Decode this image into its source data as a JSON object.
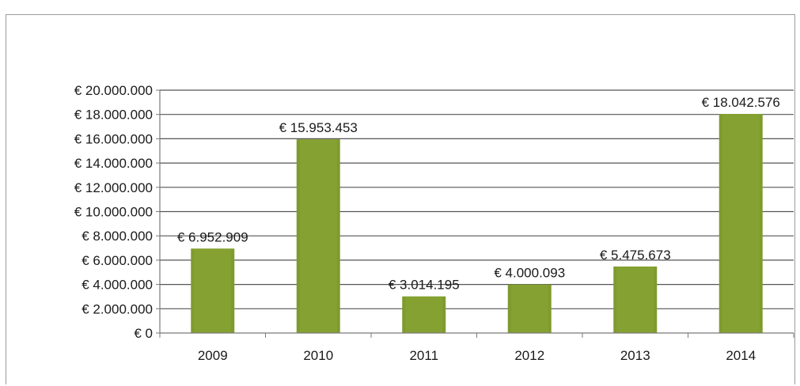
{
  "chart_data": {
    "type": "bar",
    "title": "",
    "xlabel": "",
    "ylabel": "",
    "categories": [
      "2009",
      "2010",
      "2011",
      "2012",
      "2013",
      "2014"
    ],
    "values": [
      6952909,
      15953453,
      3014195,
      4000093,
      5475673,
      18042576
    ],
    "value_labels": [
      "€ 6.952.909",
      "€ 15.953.453",
      "€ 3.014.195",
      "€ 4.000.093",
      "€ 5.475.673",
      "€ 18.042.576"
    ],
    "ylim": [
      0,
      20000000
    ],
    "y_ticks": [
      0,
      2000000,
      4000000,
      6000000,
      8000000,
      10000000,
      12000000,
      14000000,
      16000000,
      18000000,
      20000000
    ],
    "y_tick_labels": [
      "€ 0",
      "€ 2.000.000",
      "€ 4.000.000",
      "€ 6.000.000",
      "€ 8.000.000",
      "€ 10.000.000",
      "€ 12.000.000",
      "€ 14.000.000",
      "€ 16.000.000",
      "€ 18.000.000",
      "€ 20.000.000"
    ],
    "grid": true,
    "legend": "none",
    "colors": {
      "bar": "#7f9b2e",
      "bar_highlight": "#92ad3a",
      "gridline": "#555555",
      "axis": "#7a7a7a",
      "text": "#1a1a1a"
    }
  }
}
